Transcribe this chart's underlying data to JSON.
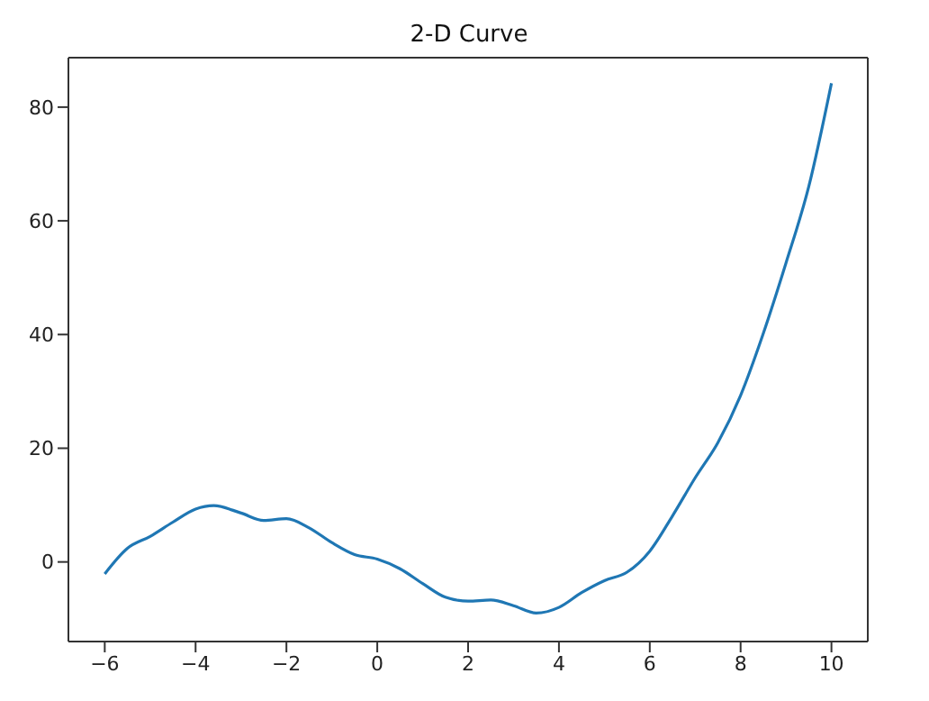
{
  "chart_data": {
    "type": "line",
    "title": "2-D Curve",
    "x": [
      -6,
      -5.5,
      -5,
      -4.5,
      -4,
      -3.6,
      -3,
      -2.5,
      -2,
      -1.5,
      -1,
      -0.5,
      0,
      0.5,
      1,
      1.5,
      2,
      2.5,
      3,
      3.5,
      4,
      4.5,
      5,
      5.5,
      6,
      6.5,
      7,
      7.5,
      8,
      8.5,
      9,
      9.5,
      10
    ],
    "series": [
      {
        "color": "#1f77b4",
        "values": [
          -2.1,
          2.4,
          4.5,
          7,
          9.3,
          9.9,
          8.6,
          7.3,
          7.6,
          6,
          3.4,
          1.3,
          0.5,
          -1.2,
          -3.8,
          -6.2,
          -6.9,
          -6.7,
          -7.7,
          -9,
          -8,
          -5.4,
          -3.3,
          -1.8,
          1.9,
          8.1,
          14.8,
          21,
          29.3,
          40.2,
          52.6,
          66,
          84.2
        ]
      }
    ],
    "xlim": [
      -6.8,
      10.8
    ],
    "xticks": [
      -6,
      -4,
      -2,
      0,
      2,
      4,
      6,
      8,
      10
    ],
    "ylim": [
      -14,
      88.7
    ],
    "yticks": [
      0,
      20,
      40,
      60,
      80
    ],
    "grid": false,
    "legend": false,
    "marker": "none",
    "line_style": "solid"
  }
}
